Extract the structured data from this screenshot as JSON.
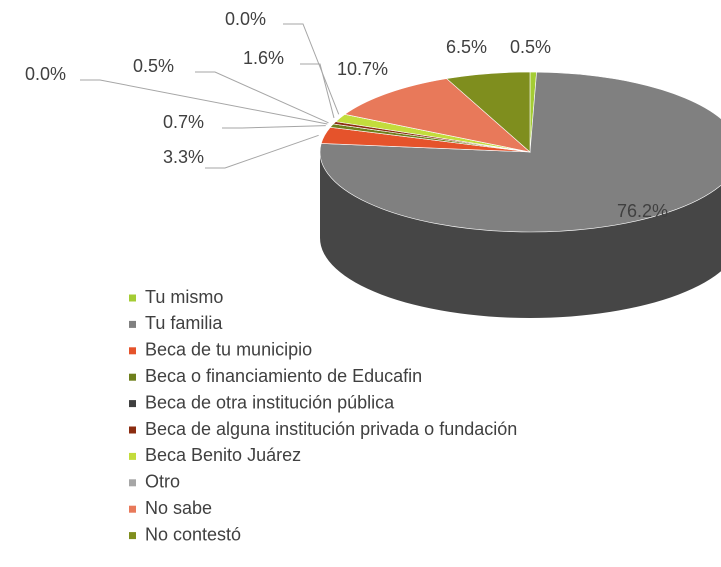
{
  "chart_data": {
    "type": "pie3d",
    "categories": [
      "Tu mismo",
      "Tu familia",
      "Beca de tu municipio",
      "Beca o financiamiento de Educafin",
      "Beca de otra institución pública",
      "Beca de alguna institución privada o fundación",
      "Beca Benito Juárez",
      "Otro",
      "No sabe",
      "No contestó"
    ],
    "values": [
      0.5,
      76.2,
      3.3,
      0.7,
      0.0,
      0.5,
      1.6,
      0.0,
      10.7,
      6.5
    ],
    "value_labels": [
      "0.5%",
      "76.2%",
      "3.3%",
      "0.7%",
      "0.0%",
      "0.5%",
      "1.6%",
      "0.0%",
      "10.7%",
      "6.5%"
    ],
    "colors": [
      "#a4cc34",
      "#808080",
      "#e5532b",
      "#6e7f1c",
      "#3f3f3f",
      "#8b2c10",
      "#c3dc3c",
      "#a6a6a6",
      "#e8795a",
      "#7f8e1e"
    ],
    "legend": "bottom-left"
  }
}
